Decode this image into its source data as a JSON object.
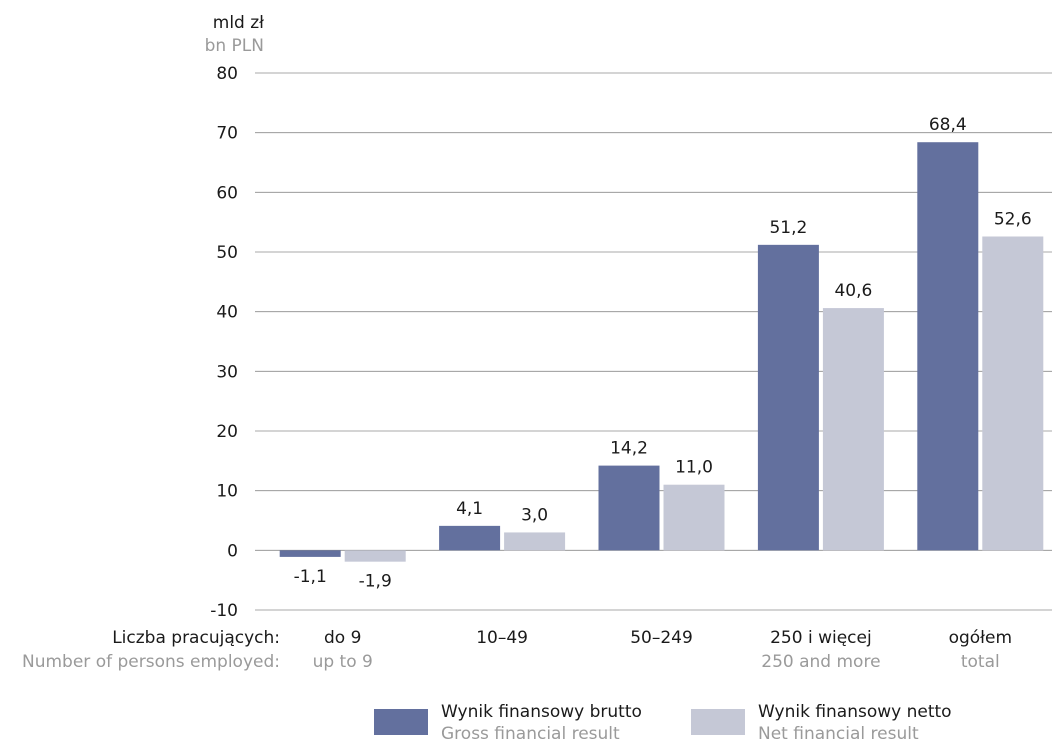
{
  "chart_data": {
    "type": "bar",
    "unit_label": "mld zł",
    "unit_label_en": "bn PLN",
    "x_title": "Liczba pracujących:",
    "x_title_en": "Number of persons employed:",
    "categories": [
      "do 9",
      "10–49",
      "50–249",
      "250 i więcej",
      "ogółem"
    ],
    "categories_en": [
      "up to 9",
      "",
      "",
      "250 and more",
      "total"
    ],
    "ylim": [
      -10,
      80
    ],
    "yticks": [
      -10,
      0,
      10,
      20,
      30,
      40,
      50,
      60,
      70,
      80
    ],
    "grid": true,
    "legend_position": "bottom",
    "series": [
      {
        "name": "Wynik finansowy brutto",
        "name_en": "Gross financial result",
        "color": "#63709e",
        "values": [
          -1.1,
          4.1,
          14.2,
          51.2,
          68.4
        ],
        "labels": [
          "-1,1",
          "4,1",
          "14,2",
          "51,2",
          "68,4"
        ]
      },
      {
        "name": "Wynik finansowy netto",
        "name_en": "Net financial result",
        "color": "#c5c8d6",
        "values": [
          -1.9,
          3.0,
          11.0,
          40.6,
          52.6
        ],
        "labels": [
          "-1,9",
          "3,0",
          "11,0",
          "40,6",
          "52,6"
        ]
      }
    ]
  }
}
